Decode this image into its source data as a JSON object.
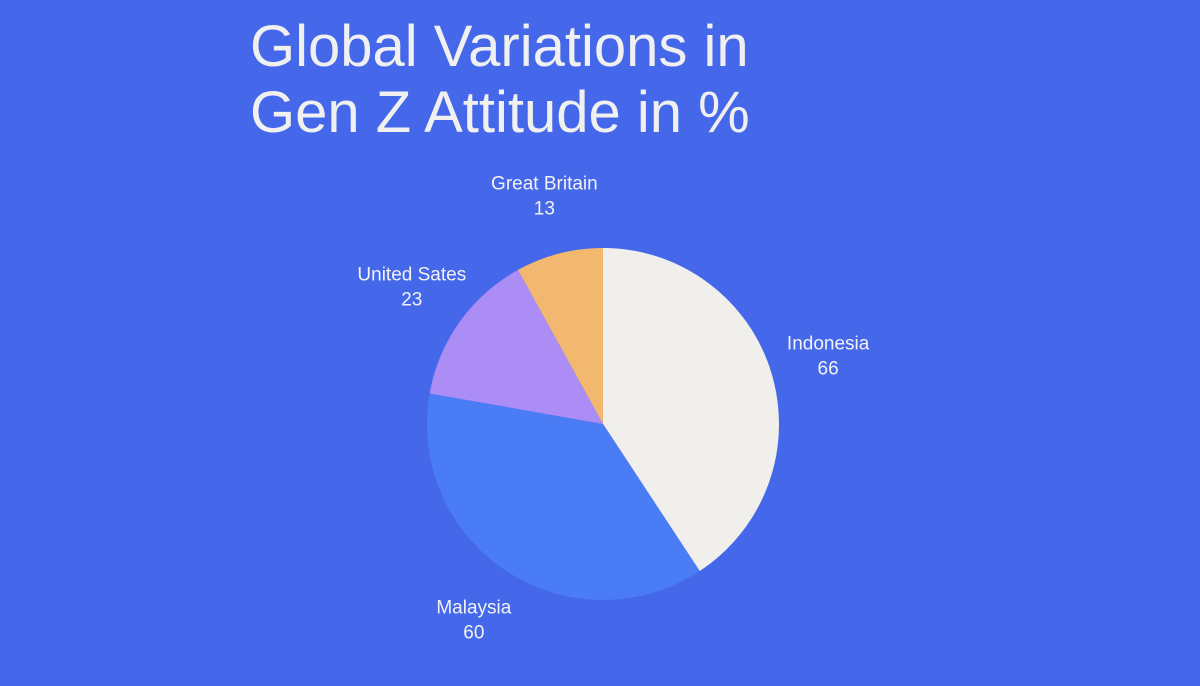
{
  "chart_data": {
    "type": "pie",
    "title": "Global Variations in Gen Z Attitude in %",
    "categories": [
      "Indonesia",
      "Malaysia",
      "United Sates",
      "Great Britain"
    ],
    "values": [
      66,
      60,
      23,
      13
    ],
    "colors": [
      "#f0efec",
      "#4a7cf5",
      "#ac8cf5",
      "#f2b870"
    ]
  }
}
